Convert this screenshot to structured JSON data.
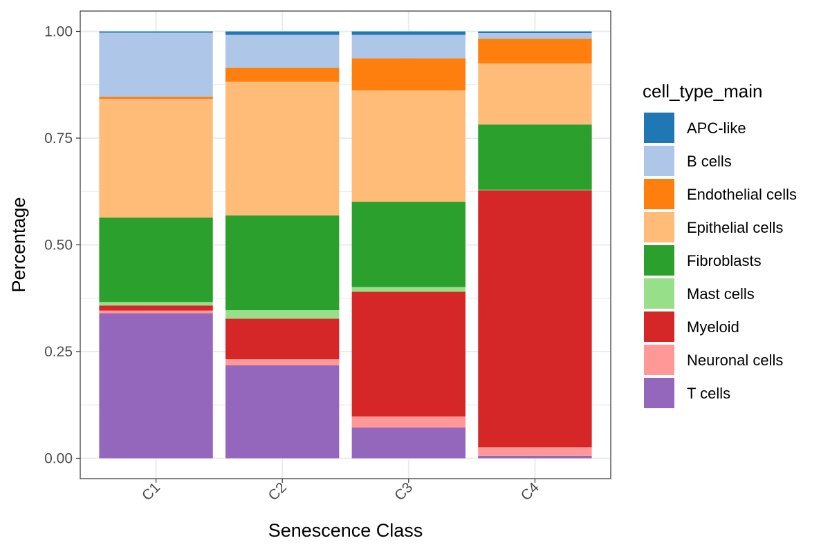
{
  "chart_data": {
    "type": "bar",
    "stacked": true,
    "title": "",
    "xlabel": "Senescence Class",
    "ylabel": "Percentage",
    "ylim": [
      0,
      1.05
    ],
    "yticks": [
      "0.00",
      "0.25",
      "0.50",
      "0.75",
      "1.00"
    ],
    "ytick_values": [
      0,
      0.25,
      0.5,
      0.75,
      1.0
    ],
    "categories": [
      "C1",
      "C2",
      "C3",
      "C4"
    ],
    "grid": true,
    "legend_position": "right",
    "legend_title": "cell_type_main",
    "series": [
      {
        "name": "T cells",
        "color": "#9467BD",
        "values": [
          0.34,
          0.218,
          0.072,
          0.006
        ]
      },
      {
        "name": "Neuronal cells",
        "color": "#FF9896",
        "values": [
          0.006,
          0.014,
          0.026,
          0.02
        ]
      },
      {
        "name": "Myeloid",
        "color": "#D62728",
        "values": [
          0.012,
          0.095,
          0.292,
          0.602
        ]
      },
      {
        "name": "Mast cells",
        "color": "#98DF8A",
        "values": [
          0.008,
          0.02,
          0.011,
          0.001
        ]
      },
      {
        "name": "Fibroblasts",
        "color": "#2CA02C",
        "values": [
          0.198,
          0.222,
          0.2,
          0.153
        ]
      },
      {
        "name": "Epithelial cells",
        "color": "#FFBB78",
        "values": [
          0.278,
          0.313,
          0.261,
          0.143
        ]
      },
      {
        "name": "Endothelial cells",
        "color": "#FF7F0E",
        "values": [
          0.005,
          0.033,
          0.075,
          0.058
        ]
      },
      {
        "name": "B cells",
        "color": "#AEC7E8",
        "values": [
          0.15,
          0.077,
          0.055,
          0.013
        ]
      },
      {
        "name": "APC-like",
        "color": "#1F77B4",
        "values": [
          0.003,
          0.008,
          0.008,
          0.004
        ]
      }
    ],
    "legend_order": [
      "APC-like",
      "B cells",
      "Endothelial cells",
      "Epithelial cells",
      "Fibroblasts",
      "Mast cells",
      "Myeloid",
      "Neuronal cells",
      "T cells"
    ]
  }
}
